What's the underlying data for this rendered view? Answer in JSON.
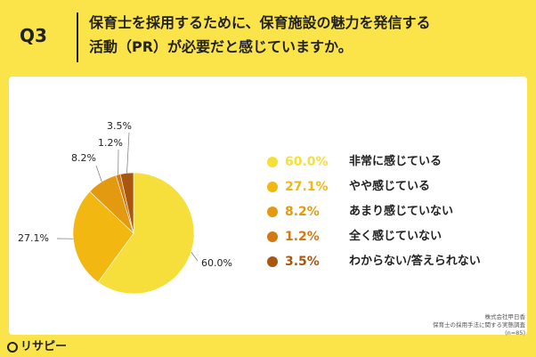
{
  "header": {
    "q_label": "Q3",
    "title_line1": "保育士を採用するために、保育施設の魅力を発信する",
    "title_line2": "活動（PR）が必要だと感じていますか。"
  },
  "chart_data": {
    "type": "pie",
    "title": "保育士を採用するために、保育施設の魅力を発信する活動（PR）が必要だと感じていますか。",
    "categories": [
      "非常に感じている",
      "やや感じている",
      "あまり感じていない",
      "全く感じていない",
      "わからない/答えられない"
    ],
    "values": [
      60.0,
      27.1,
      8.2,
      1.2,
      3.5
    ],
    "labels": [
      "60.0%",
      "27.1%",
      "8.2%",
      "1.2%",
      "3.5%"
    ],
    "colors": [
      "#F6DF3A",
      "#F2B711",
      "#E39A10",
      "#D47812",
      "#A9570F"
    ],
    "legend_position": "right",
    "n": "(n=85)"
  },
  "source": {
    "line1": "株式会社甲日香",
    "line2": "保育士の採用手法に関する実態調査",
    "line3": "(n=85)"
  },
  "logo": {
    "text": "リサピー"
  }
}
